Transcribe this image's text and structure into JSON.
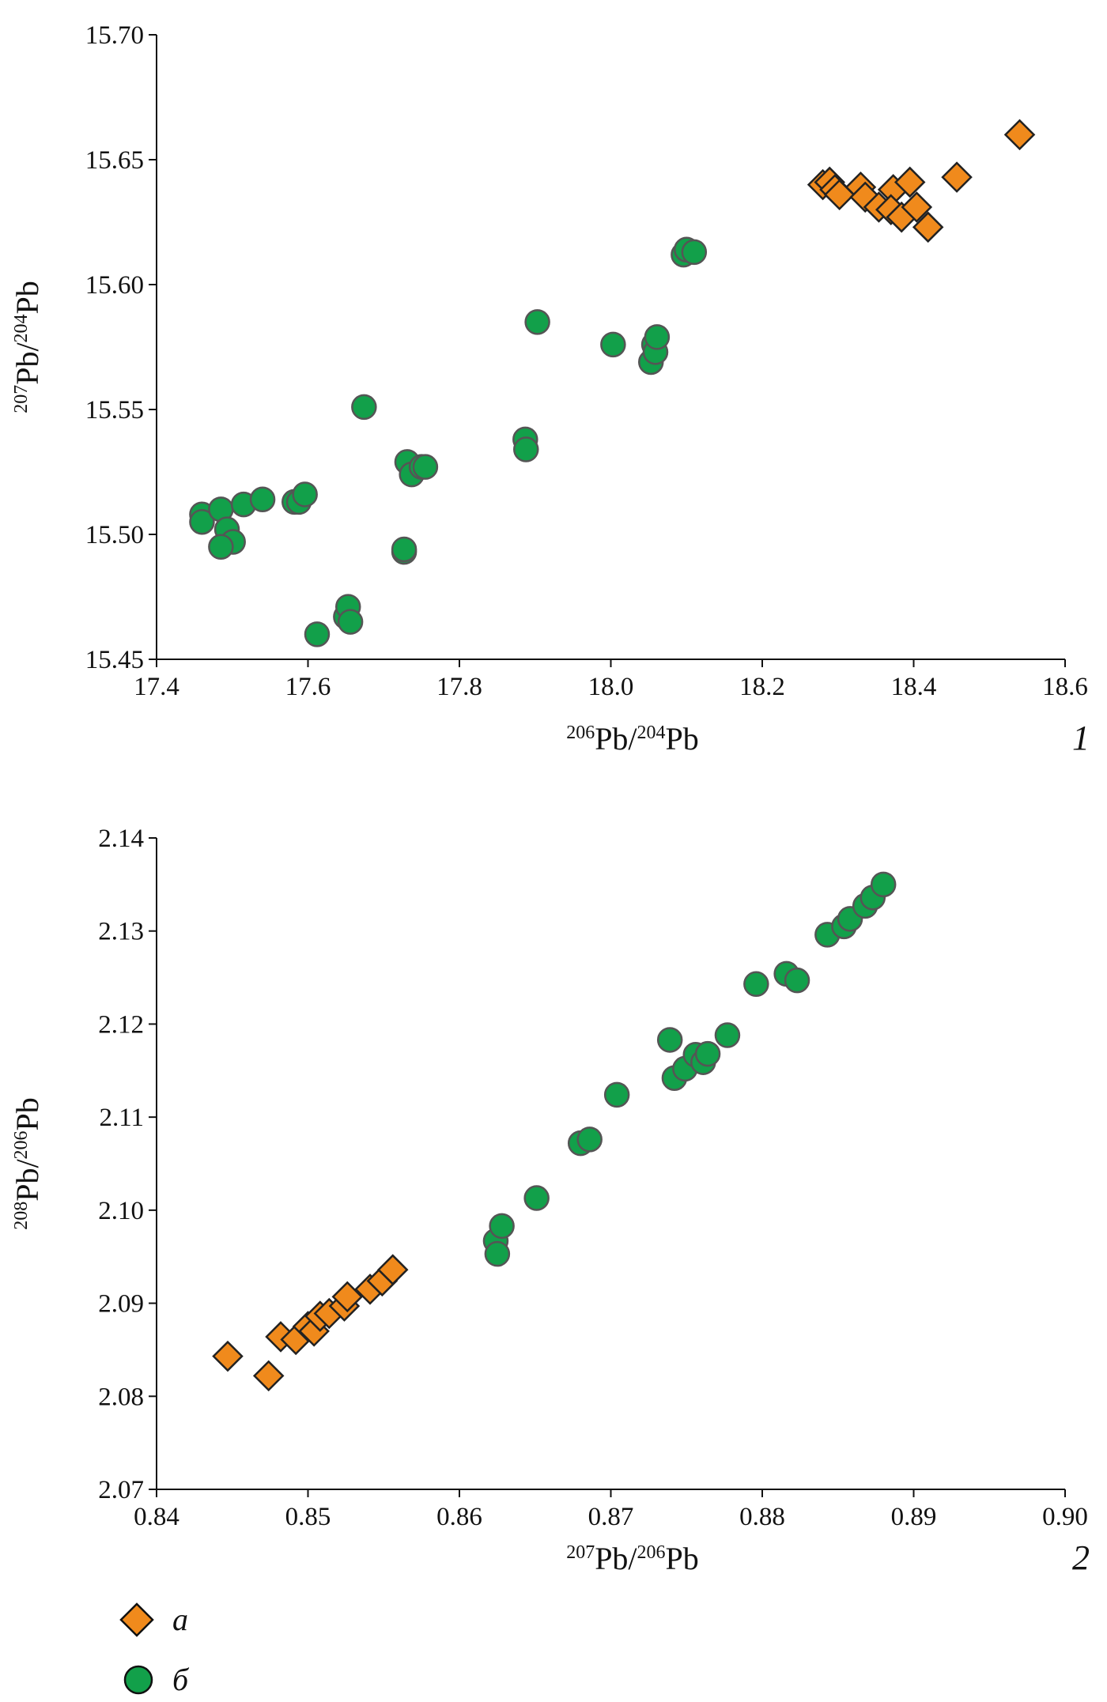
{
  "chart_data": [
    {
      "type": "scatter",
      "panel_label": "1",
      "xlabel_parts": [
        {
          "sup": "206"
        },
        {
          "text": "Pb/"
        },
        {
          "sup": "204"
        },
        {
          "text": "Pb"
        }
      ],
      "ylabel_parts": [
        {
          "sup": "207"
        },
        {
          "text": "Pb/"
        },
        {
          "sup": "204"
        },
        {
          "text": "Pb"
        }
      ],
      "xlim": [
        17.4,
        18.6
      ],
      "ylim": [
        15.45,
        15.7
      ],
      "xticks": [
        "17.4",
        "17.6",
        "17.8",
        "18.0",
        "18.2",
        "18.4",
        "18.6"
      ],
      "yticks": [
        "15.45",
        "15.50",
        "15.55",
        "15.60",
        "15.65",
        "15.70"
      ],
      "grid": false,
      "series": [
        {
          "name": "а",
          "marker": "diamond",
          "color": "#f08a1c",
          "points": [
            [
              18.28,
              15.64
            ],
            [
              18.289,
              15.641
            ],
            [
              18.296,
              15.638
            ],
            [
              18.302,
              15.636
            ],
            [
              18.33,
              15.639
            ],
            [
              18.336,
              15.635
            ],
            [
              18.354,
              15.631
            ],
            [
              18.373,
              15.638
            ],
            [
              18.37,
              15.63
            ],
            [
              18.384,
              15.627
            ],
            [
              18.395,
              15.641
            ],
            [
              18.404,
              15.631
            ],
            [
              18.419,
              15.623
            ],
            [
              18.457,
              15.643
            ],
            [
              18.54,
              15.66
            ]
          ]
        },
        {
          "name": "б",
          "marker": "circle",
          "color": "#12a04a",
          "points": [
            [
              17.46,
              15.508
            ],
            [
              17.46,
              15.505
            ],
            [
              17.485,
              15.51
            ],
            [
              17.493,
              15.502
            ],
            [
              17.501,
              15.497
            ],
            [
              17.485,
              15.495
            ],
            [
              17.515,
              15.512
            ],
            [
              17.54,
              15.514
            ],
            [
              17.582,
              15.513
            ],
            [
              17.588,
              15.513
            ],
            [
              17.596,
              15.516
            ],
            [
              17.612,
              15.46
            ],
            [
              17.65,
              15.467
            ],
            [
              17.653,
              15.471
            ],
            [
              17.656,
              15.465
            ],
            [
              17.674,
              15.551
            ],
            [
              17.727,
              15.493
            ],
            [
              17.727,
              15.494
            ],
            [
              17.731,
              15.529
            ],
            [
              17.737,
              15.524
            ],
            [
              17.75,
              15.527
            ],
            [
              17.755,
              15.527
            ],
            [
              17.887,
              15.538
            ],
            [
              17.888,
              15.534
            ],
            [
              17.903,
              15.585
            ],
            [
              18.003,
              15.576
            ],
            [
              18.053,
              15.569
            ],
            [
              18.057,
              15.576
            ],
            [
              18.059,
              15.573
            ],
            [
              18.061,
              15.579
            ],
            [
              18.096,
              15.612
            ],
            [
              18.1,
              15.614
            ],
            [
              18.11,
              15.613
            ]
          ]
        }
      ]
    },
    {
      "type": "scatter",
      "panel_label": "2",
      "xlabel_parts": [
        {
          "sup": "207"
        },
        {
          "text": "Pb/"
        },
        {
          "sup": "206"
        },
        {
          "text": "Pb"
        }
      ],
      "ylabel_parts": [
        {
          "sup": "208"
        },
        {
          "text": "Pb/"
        },
        {
          "sup": "206"
        },
        {
          "text": "Pb"
        }
      ],
      "xlim": [
        0.84,
        0.9
      ],
      "ylim": [
        2.07,
        2.14
      ],
      "xticks": [
        "0.84",
        "0.85",
        "0.86",
        "0.87",
        "0.88",
        "0.89",
        "0.90"
      ],
      "yticks": [
        "2.07",
        "2.08",
        "2.09",
        "2.10",
        "2.11",
        "2.12",
        "2.13",
        "2.14"
      ],
      "grid": false,
      "series": [
        {
          "name": "а",
          "marker": "diamond",
          "color": "#f08a1c",
          "points": [
            [
              0.8447,
              2.0843
            ],
            [
              0.8474,
              2.0822
            ],
            [
              0.8482,
              2.0864
            ],
            [
              0.8492,
              2.0861
            ],
            [
              0.85,
              2.0875
            ],
            [
              0.8504,
              2.087
            ],
            [
              0.8508,
              2.0886
            ],
            [
              0.8514,
              2.0889
            ],
            [
              0.8524,
              2.0897
            ],
            [
              0.8526,
              2.0907
            ],
            [
              0.8541,
              2.0915
            ],
            [
              0.8549,
              2.0924
            ],
            [
              0.8556,
              2.0936
            ]
          ]
        },
        {
          "name": "б",
          "marker": "circle",
          "color": "#12a04a",
          "points": [
            [
              0.8624,
              2.0967
            ],
            [
              0.8625,
              2.0953
            ],
            [
              0.8628,
              2.0983
            ],
            [
              0.8651,
              2.1013
            ],
            [
              0.868,
              2.1072
            ],
            [
              0.8686,
              2.1076
            ],
            [
              0.8704,
              2.1124
            ],
            [
              0.8739,
              2.1183
            ],
            [
              0.8742,
              2.1142
            ],
            [
              0.8749,
              2.1152
            ],
            [
              0.8756,
              2.1167
            ],
            [
              0.8761,
              2.1159
            ],
            [
              0.8764,
              2.1168
            ],
            [
              0.8777,
              2.1188
            ],
            [
              0.8796,
              2.1243
            ],
            [
              0.8816,
              2.1254
            ],
            [
              0.8823,
              2.1247
            ],
            [
              0.8843,
              2.1296
            ],
            [
              0.8854,
              2.1305
            ],
            [
              0.8858,
              2.1313
            ],
            [
              0.8868,
              2.1327
            ],
            [
              0.8873,
              2.1336
            ],
            [
              0.888,
              2.135
            ]
          ]
        }
      ]
    }
  ],
  "legend": [
    {
      "label": "а",
      "marker": "diamond",
      "color": "#f08a1c"
    },
    {
      "label": "б",
      "marker": "circle",
      "color": "#12a04a"
    }
  ]
}
